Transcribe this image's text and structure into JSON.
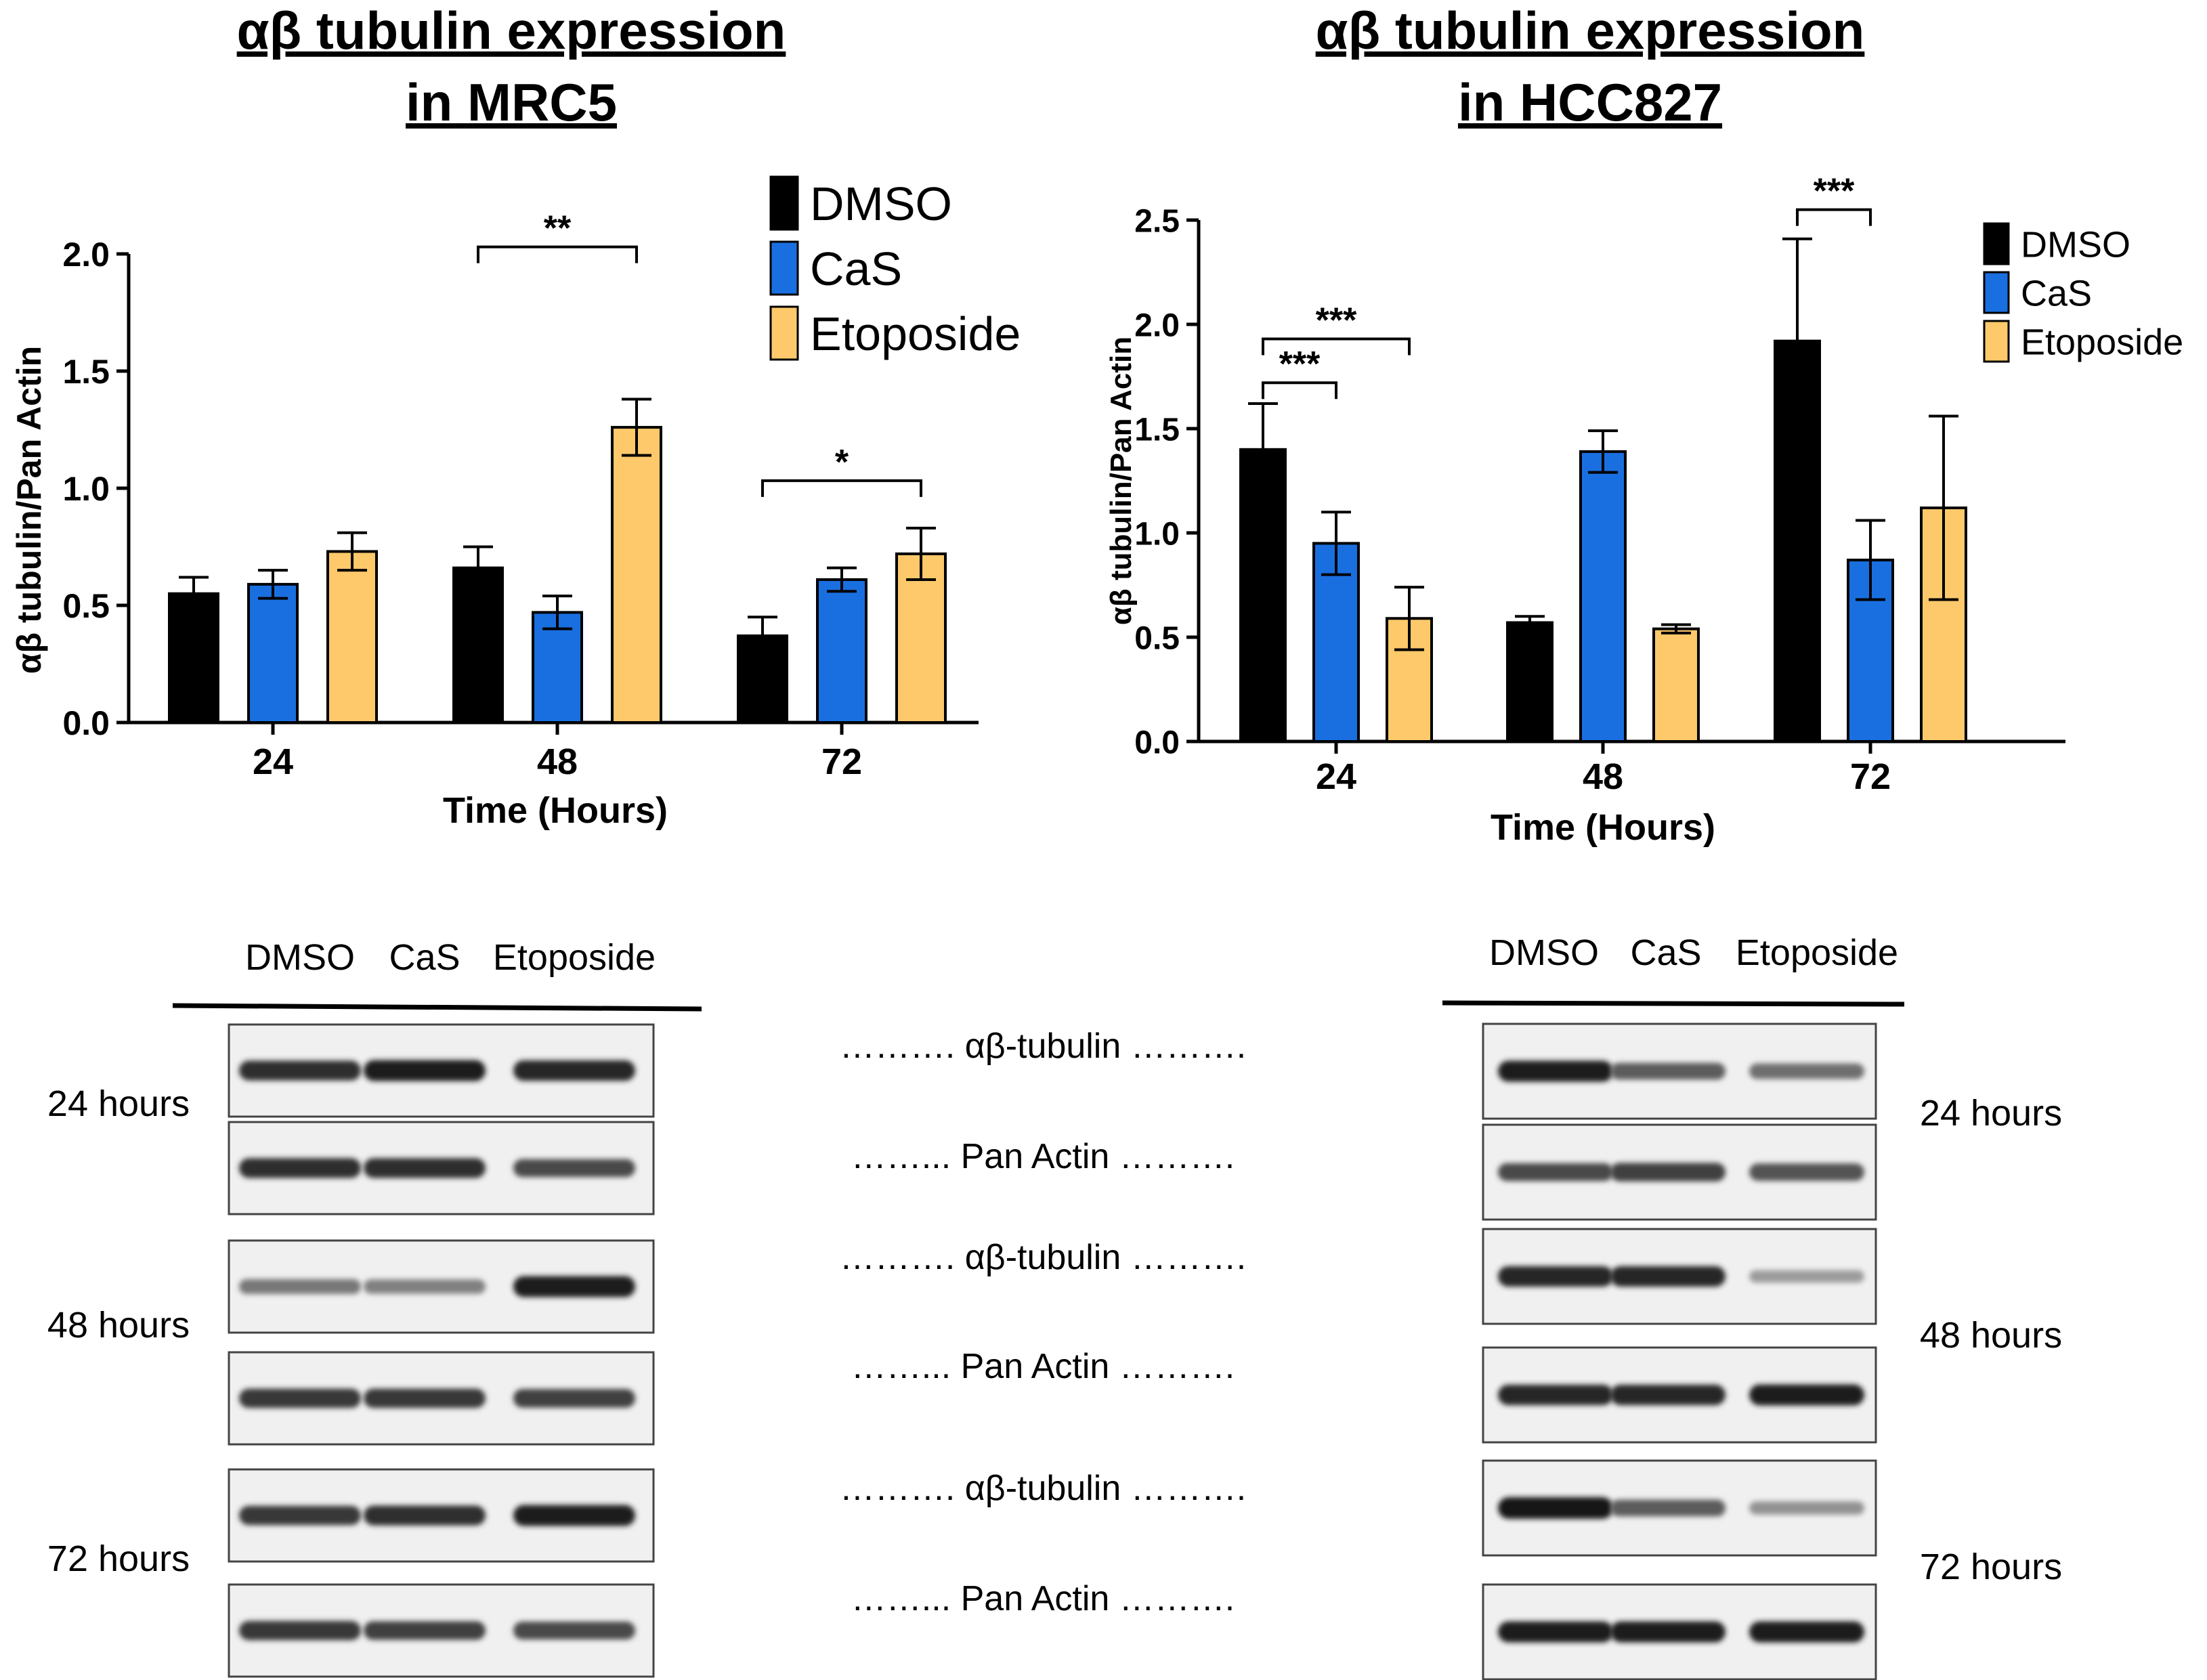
{
  "chart_data": [
    {
      "type": "bar",
      "title_lines": [
        "αβ tubulin expression",
        "in MRC5"
      ],
      "xlabel": "Time (Hours)",
      "ylabel": "αβ tubulin/Pan Actin",
      "ylim": [
        0,
        2.0
      ],
      "yticks": [
        "0.0",
        "0.5",
        "1.0",
        "1.5",
        "2.0"
      ],
      "categories": [
        "24",
        "48",
        "72"
      ],
      "series": [
        {
          "name": "DMSO",
          "color": "#000000",
          "values": [
            0.55,
            0.66,
            0.37
          ],
          "errors": [
            0.07,
            0.09,
            0.08
          ]
        },
        {
          "name": "CaS",
          "color": "#1a6fe0",
          "values": [
            0.59,
            0.47,
            0.61
          ],
          "errors": [
            0.06,
            0.07,
            0.05
          ]
        },
        {
          "name": "Etoposide",
          "color": "#fdc96b",
          "values": [
            0.73,
            1.26,
            0.72
          ],
          "errors": [
            0.08,
            0.12,
            0.11
          ]
        }
      ],
      "legend_position": "top-right",
      "significance": [
        {
          "category": "48",
          "from": "DMSO",
          "to": "Etoposide",
          "label": "**"
        },
        {
          "category": "72",
          "from": "DMSO",
          "to": "Etoposide",
          "label": "*"
        }
      ]
    },
    {
      "type": "bar",
      "title_lines": [
        "αβ tubulin expression",
        "in HCC827"
      ],
      "xlabel": "Time (Hours)",
      "ylabel": "αβ tubulin/Pan Actin",
      "ylim": [
        0,
        2.5
      ],
      "yticks": [
        "0.0",
        "0.5",
        "1.0",
        "1.5",
        "2.0",
        "2.5"
      ],
      "categories": [
        "24",
        "48",
        "72"
      ],
      "series": [
        {
          "name": "DMSO",
          "color": "#000000",
          "values": [
            1.4,
            0.57,
            1.92
          ],
          "errors": [
            0.22,
            0.03,
            0.49
          ]
        },
        {
          "name": "CaS",
          "color": "#1a6fe0",
          "values": [
            0.95,
            1.39,
            0.87
          ],
          "errors": [
            0.15,
            0.1,
            0.19
          ]
        },
        {
          "name": "Etoposide",
          "color": "#fdc96b",
          "values": [
            0.59,
            0.54,
            1.12
          ],
          "errors": [
            0.15,
            0.02,
            0.44
          ]
        }
      ],
      "legend_position": "top-right",
      "significance": [
        {
          "category": "24",
          "from": "DMSO",
          "to": "CaS",
          "label": "***"
        },
        {
          "category": "24",
          "from": "DMSO",
          "to": "Etoposide",
          "label": "***"
        },
        {
          "category": "72",
          "from": "DMSO",
          "to": "CaS",
          "label": "***"
        }
      ]
    }
  ],
  "blots": [
    {
      "lanes": [
        "DMSO",
        "CaS",
        "Etoposide"
      ],
      "panels": [
        {
          "time": "24 hours",
          "bands": [
            {
              "label": "………. αβ-tubulin ……….",
              "intensity": [
                0.85,
                0.95,
                0.9
              ]
            },
            {
              "label": "……... Pan Actin ……….",
              "intensity": [
                0.85,
                0.85,
                0.7
              ]
            }
          ]
        },
        {
          "time": "48 hours",
          "bands": [
            {
              "label": "………. αβ-tubulin ……….",
              "intensity": [
                0.45,
                0.4,
                0.95
              ]
            },
            {
              "label": "……... Pan Actin ……….",
              "intensity": [
                0.8,
                0.8,
                0.75
              ]
            }
          ]
        },
        {
          "time": "72 hours",
          "bands": [
            {
              "label": "………. αβ-tubulin ……….",
              "intensity": [
                0.8,
                0.85,
                0.95
              ]
            },
            {
              "label": "……... Pan Actin ……….",
              "intensity": [
                0.8,
                0.75,
                0.7
              ]
            }
          ]
        }
      ]
    },
    {
      "lanes": [
        "DMSO",
        "CaS",
        "Etoposide"
      ],
      "panels": [
        {
          "time": "24 hours",
          "bands": [
            {
              "intensity": [
                0.95,
                0.6,
                0.5
              ]
            },
            {
              "intensity": [
                0.7,
                0.75,
                0.65
              ]
            }
          ]
        },
        {
          "time": "48 hours",
          "bands": [
            {
              "intensity": [
                0.9,
                0.9,
                0.25
              ]
            },
            {
              "intensity": [
                0.9,
                0.9,
                0.95
              ]
            }
          ]
        },
        {
          "time": "72 hours",
          "bands": [
            {
              "intensity": [
                1.0,
                0.6,
                0.3
              ]
            },
            {
              "intensity": [
                0.95,
                0.95,
                0.95
              ]
            }
          ]
        }
      ]
    }
  ]
}
